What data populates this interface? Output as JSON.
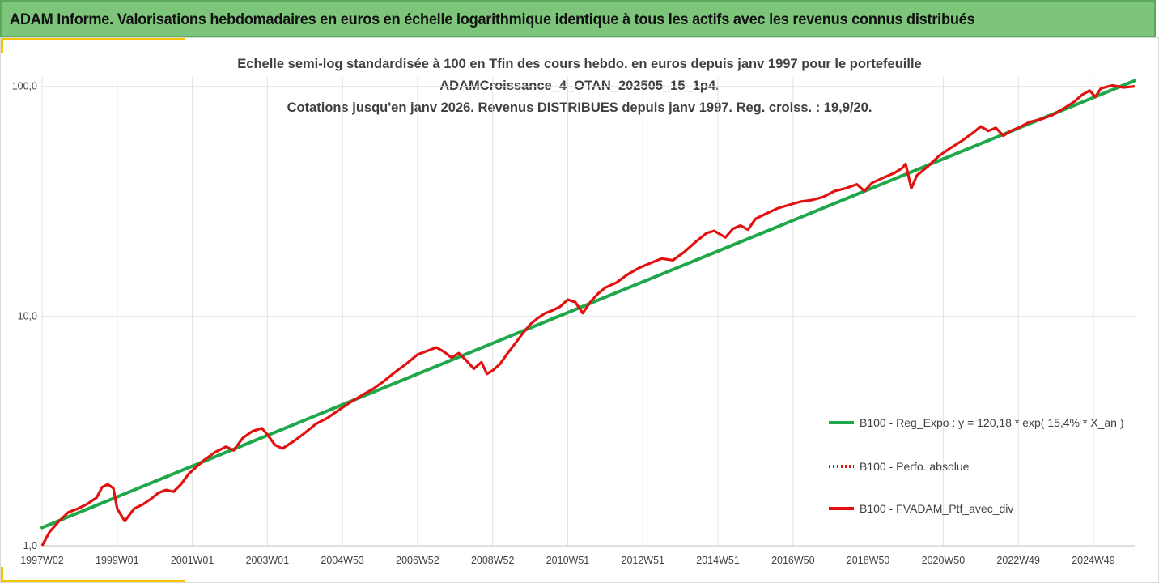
{
  "header": {
    "title": "ADAM Informe. Valorisations hebdomadaires en euros en échelle logarithmique identique à tous les actifs avec les revenus connus distribués"
  },
  "colors": {
    "banner": "#7cc57a",
    "accent": "#f5c400",
    "regression": "#1fa84a",
    "portfolio": "#e31010",
    "grid": "#e2e2e2"
  },
  "chart_data": {
    "type": "line",
    "title_lines": [
      "Echelle semi-log standardisée à 100 en Tfin des cours hebdo.  en euros depuis janv 1997 pour le portefeuille",
      "ADAMCroissance_4_OTAN_202505_15_1p4.",
      "Cotations  jusqu'en janv 2026. Revenus DISTRIBUES depuis janv 1997. Reg. croiss. : 19,9/20."
    ],
    "y_scale": "log",
    "ylim": [
      1,
      110
    ],
    "y_ticks": [
      1,
      10,
      100
    ],
    "y_tick_labels": [
      "1,0",
      "10,0",
      "100,0"
    ],
    "x_range": [
      1997.0,
      2026.1
    ],
    "x_ticks": [
      1997.0,
      1999.0,
      2001.0,
      2003.0,
      2005.0,
      2007.0,
      2009.0,
      2011.0,
      2013.0,
      2015.0,
      2017.0,
      2019.0,
      2021.0,
      2023.0,
      2025.0
    ],
    "x_tick_labels": [
      "1997W02",
      "1999W01",
      "2001W01",
      "2003W01",
      "2004W53",
      "2006W52",
      "2008W52",
      "2010W51",
      "2012W51",
      "2014W51",
      "2016W50",
      "2018W50",
      "2020W50",
      "2022W49",
      "2024W49"
    ],
    "vertical_gridlines": true,
    "legend_position": "right",
    "series": [
      {
        "name": "B100 - Reg_Expo : y = 120,18 * exp( 15,4% *  X_an )",
        "style": "solid-green",
        "x": [
          1997.0,
          2026.1
        ],
        "y": [
          1.2,
          106
        ]
      },
      {
        "name": "B100 - Perfo. absolue",
        "style": "dotted-red",
        "x": [],
        "y": []
      },
      {
        "name": "B100 - FVADAM_Ptf_avec_div",
        "style": "solid-red",
        "x": [
          1997.0,
          1997.2,
          1997.45,
          1997.7,
          1997.95,
          1998.2,
          1998.45,
          1998.6,
          1998.75,
          1998.9,
          1999.0,
          1999.2,
          1999.45,
          1999.7,
          1999.9,
          2000.1,
          2000.3,
          2000.5,
          2000.7,
          2000.9,
          2001.1,
          2001.3,
          2001.6,
          2001.9,
          2002.1,
          2002.35,
          2002.6,
          2002.85,
          2003.0,
          2003.2,
          2003.4,
          2003.7,
          2004.0,
          2004.3,
          2004.6,
          2004.9,
          2005.2,
          2005.5,
          2005.8,
          2006.1,
          2006.4,
          2006.7,
          2007.0,
          2007.3,
          2007.5,
          2007.7,
          2007.9,
          2008.1,
          2008.3,
          2008.5,
          2008.7,
          2008.85,
          2009.0,
          2009.2,
          2009.4,
          2009.6,
          2009.8,
          2010.0,
          2010.2,
          2010.4,
          2010.6,
          2010.8,
          2011.0,
          2011.2,
          2011.4,
          2011.6,
          2011.8,
          2012.0,
          2012.3,
          2012.6,
          2012.9,
          2013.2,
          2013.5,
          2013.8,
          2014.1,
          2014.4,
          2014.7,
          2014.9,
          2015.2,
          2015.4,
          2015.6,
          2015.8,
          2016.0,
          2016.3,
          2016.6,
          2016.9,
          2017.2,
          2017.5,
          2017.8,
          2018.1,
          2018.4,
          2018.7,
          2018.9,
          2019.1,
          2019.4,
          2019.7,
          2019.9,
          2020.0,
          2020.15,
          2020.3,
          2020.6,
          2020.9,
          2021.2,
          2021.5,
          2021.8,
          2022.0,
          2022.2,
          2022.4,
          2022.6,
          2022.8,
          2023.0,
          2023.3,
          2023.6,
          2023.9,
          2024.2,
          2024.5,
          2024.7,
          2024.9,
          2025.05,
          2025.2,
          2025.5,
          2025.8,
          2026.1
        ],
        "y": [
          1.0,
          1.15,
          1.28,
          1.4,
          1.45,
          1.52,
          1.62,
          1.8,
          1.85,
          1.78,
          1.45,
          1.28,
          1.45,
          1.52,
          1.6,
          1.7,
          1.75,
          1.72,
          1.85,
          2.05,
          2.2,
          2.35,
          2.55,
          2.7,
          2.6,
          2.95,
          3.15,
          3.25,
          3.05,
          2.75,
          2.65,
          2.85,
          3.1,
          3.4,
          3.6,
          3.9,
          4.2,
          4.5,
          4.8,
          5.2,
          5.7,
          6.2,
          6.8,
          7.1,
          7.3,
          7.0,
          6.6,
          6.9,
          6.4,
          5.9,
          6.3,
          5.6,
          5.8,
          6.2,
          6.9,
          7.6,
          8.4,
          9.2,
          9.8,
          10.3,
          10.6,
          11.0,
          11.8,
          11.5,
          10.3,
          11.5,
          12.5,
          13.3,
          14.0,
          15.2,
          16.2,
          17.0,
          17.8,
          17.5,
          19.0,
          21.0,
          23.0,
          23.5,
          22.0,
          24.0,
          24.8,
          23.8,
          26.5,
          28.0,
          29.5,
          30.5,
          31.5,
          32.0,
          33.0,
          35.0,
          36.0,
          37.5,
          35.0,
          38.0,
          40.0,
          42.0,
          44.0,
          46.0,
          36.0,
          41.0,
          45.0,
          50.0,
          54.0,
          58.0,
          63.0,
          67.0,
          64.0,
          66.0,
          61.0,
          64.0,
          66.0,
          70.0,
          72.0,
          75.0,
          80.0,
          86.0,
          92.0,
          96.0,
          90.0,
          98.0,
          101.0,
          99.0,
          100.0
        ]
      }
    ]
  }
}
